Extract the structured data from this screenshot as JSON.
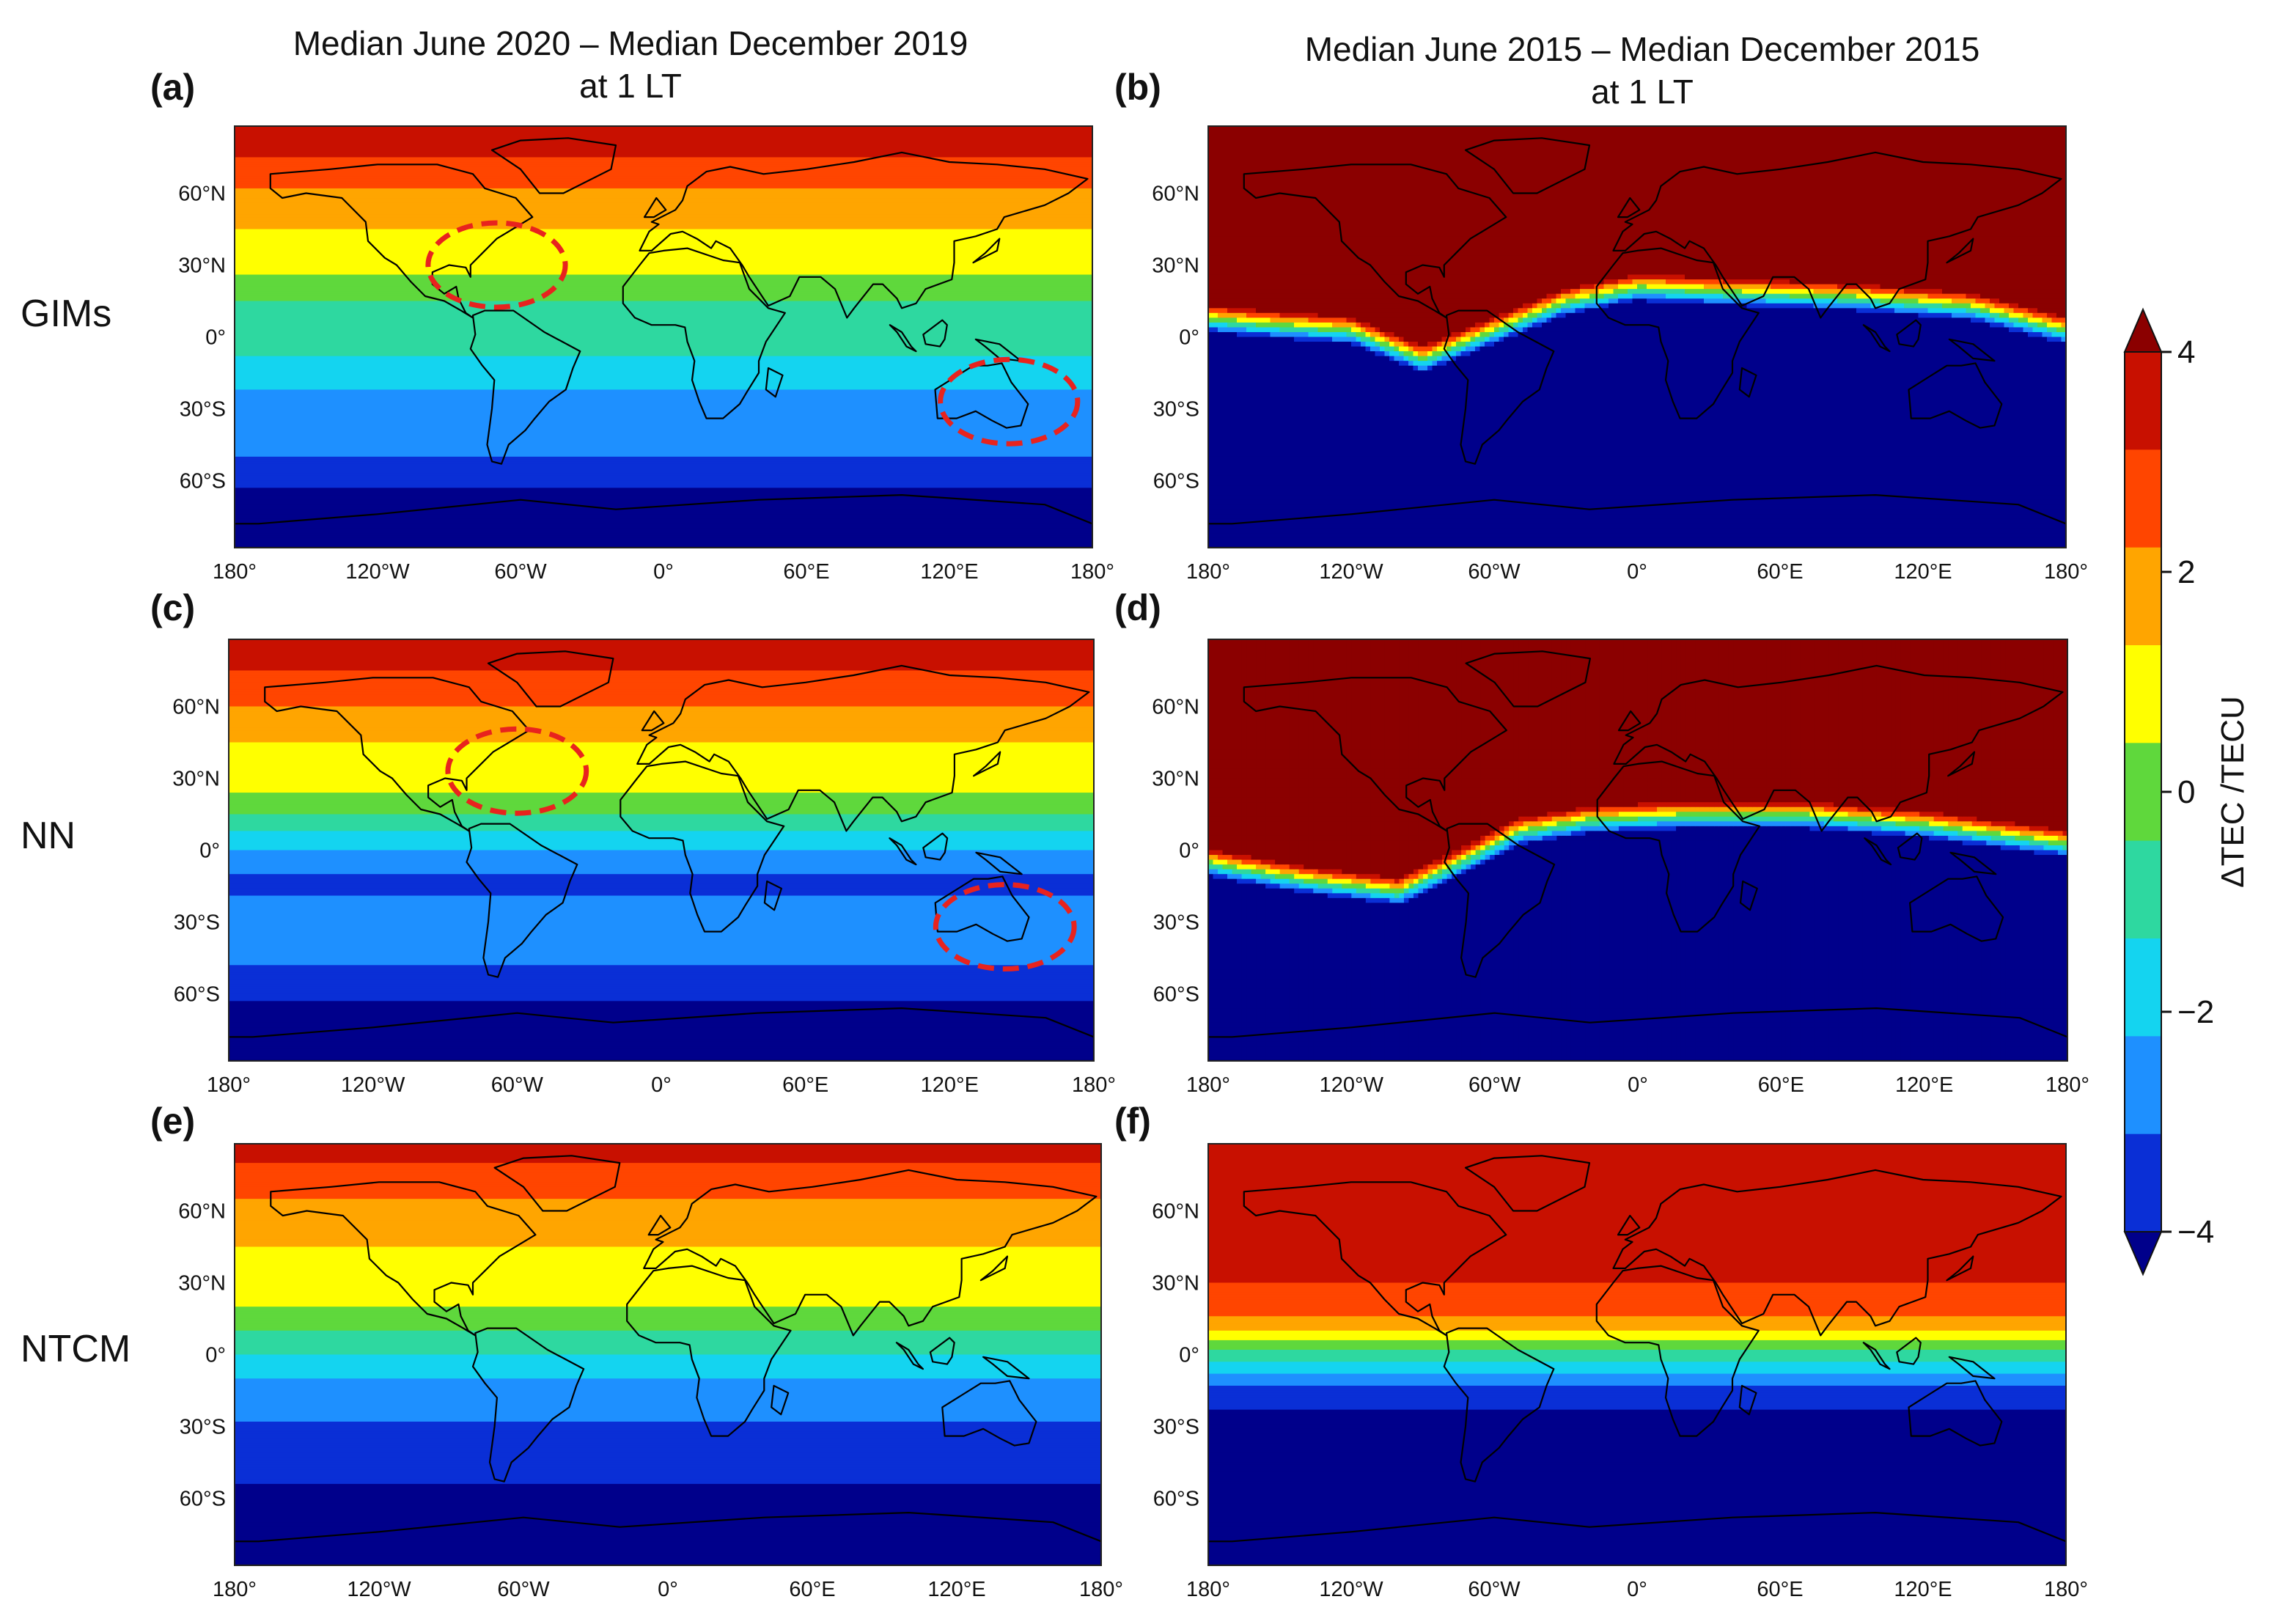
{
  "figure": {
    "col_titles": [
      {
        "line1": "Median June 2020 – Median December 2019",
        "line2": "at 1 LT"
      },
      {
        "line1": "Median June 2015 – Median December 2015",
        "line2": "at 1 LT"
      }
    ],
    "row_labels": [
      "GIMs",
      "NN",
      "NTCM"
    ],
    "panel_labels": [
      "(a)",
      "(b)",
      "(c)",
      "(d)",
      "(e)",
      "(f)"
    ]
  },
  "chart_data": {
    "type": "heatmap",
    "layout": "3x2 grid of filled-contour world maps",
    "lon_ticks": [
      "180°",
      "120°W",
      "60°W",
      "0°",
      "60°E",
      "120°E",
      "180°"
    ],
    "lat_ticks": [
      "60°N",
      "30°N",
      "0°",
      "30°S",
      "60°S"
    ],
    "lat_values": [
      60,
      30,
      0,
      -30,
      -60
    ],
    "lon_values": [
      -180,
      -120,
      -60,
      0,
      60,
      120,
      180
    ],
    "colorbar": {
      "label": "ΔTEC /TECU",
      "levels": [
        -5,
        -4,
        -3,
        -2,
        -1,
        0,
        1,
        2,
        3,
        4,
        5
      ],
      "ticks": [
        4,
        2,
        0,
        -2,
        -4
      ],
      "tick_labels": [
        "4",
        "2",
        "0",
        "−2",
        "−4"
      ],
      "colors": [
        "#00008b",
        "#0a2fd6",
        "#1e90ff",
        "#14d4f0",
        "#2ed8a0",
        "#5fd83c",
        "#ffff00",
        "#ffa500",
        "#ff4500",
        "#c81000",
        "#8b0000"
      ],
      "extend": "both"
    },
    "panels": [
      {
        "id": "a",
        "model": "GIMs",
        "period": "June 2020 – December 2019",
        "lat_profile": [
          [
            90,
            5
          ],
          [
            75,
            4
          ],
          [
            62,
            3
          ],
          [
            45,
            2
          ],
          [
            32,
            1.5
          ],
          [
            20,
            0.5
          ],
          [
            10,
            -0.5
          ],
          [
            0,
            -0.5
          ],
          [
            -15,
            -1.5
          ],
          [
            -28,
            -2.5
          ],
          [
            -40,
            -2
          ],
          [
            -55,
            -3.5
          ],
          [
            -70,
            -4.5
          ],
          [
            -90,
            -5
          ]
        ],
        "circles": [
          {
            "lon": -70,
            "lat": 30
          },
          {
            "lon": 145,
            "lat": -27
          }
        ]
      },
      {
        "id": "b",
        "model": "GIMs",
        "period": "June 2015 – December 2015",
        "front": [
          [
            -180,
            5
          ],
          [
            -160,
            3
          ],
          [
            -120,
            0
          ],
          [
            -90,
            -12
          ],
          [
            -60,
            0
          ],
          [
            -30,
            12
          ],
          [
            0,
            18
          ],
          [
            40,
            16
          ],
          [
            90,
            14
          ],
          [
            140,
            10
          ],
          [
            180,
            0
          ]
        ]
      },
      {
        "id": "c",
        "model": "NN",
        "period": "June 2020 – December 2019",
        "lat_profile": [
          [
            90,
            5
          ],
          [
            75,
            4
          ],
          [
            60,
            3
          ],
          [
            45,
            2
          ],
          [
            30,
            1.5
          ],
          [
            18,
            0.5
          ],
          [
            8,
            -1
          ],
          [
            0,
            -2
          ],
          [
            -15,
            -3.5
          ],
          [
            -28,
            -2
          ],
          [
            -40,
            -2.5
          ],
          [
            -55,
            -3.5
          ],
          [
            -70,
            -4.5
          ],
          [
            -90,
            -5
          ]
        ],
        "circles": [
          {
            "lon": -60,
            "lat": 33
          },
          {
            "lon": 143,
            "lat": -32
          }
        ]
      },
      {
        "id": "d",
        "model": "NN",
        "period": "June 2015 – December 2015",
        "front": [
          [
            -180,
            -8
          ],
          [
            -140,
            -15
          ],
          [
            -100,
            -20
          ],
          [
            -75,
            -8
          ],
          [
            -50,
            5
          ],
          [
            -20,
            10
          ],
          [
            20,
            12
          ],
          [
            70,
            12
          ],
          [
            120,
            8
          ],
          [
            180,
            0
          ]
        ]
      },
      {
        "id": "e",
        "model": "NTCM",
        "period": "June 2020 – December 2019",
        "lat_profile": [
          [
            90,
            5
          ],
          [
            80,
            4
          ],
          [
            65,
            3
          ],
          [
            45,
            2
          ],
          [
            25,
            1.5
          ],
          [
            15,
            0.5
          ],
          [
            5,
            -0.5
          ],
          [
            -5,
            -1.5
          ],
          [
            -15,
            -2.5
          ],
          [
            -40,
            -3.5
          ],
          [
            -60,
            -4.2
          ],
          [
            -90,
            -5
          ]
        ]
      },
      {
        "id": "f",
        "model": "NTCM",
        "period": "June 2015 – December 2015",
        "lat_profile": [
          [
            90,
            5
          ],
          [
            40,
            4.5
          ],
          [
            20,
            3.5
          ],
          [
            12,
            2.5
          ],
          [
            8,
            1.5
          ],
          [
            4,
            0.5
          ],
          [
            0,
            -0.5
          ],
          [
            -5,
            -1.5
          ],
          [
            -10,
            -2.5
          ],
          [
            -15,
            -3.5
          ],
          [
            -30,
            -4.5
          ],
          [
            -90,
            -5
          ]
        ]
      }
    ]
  }
}
